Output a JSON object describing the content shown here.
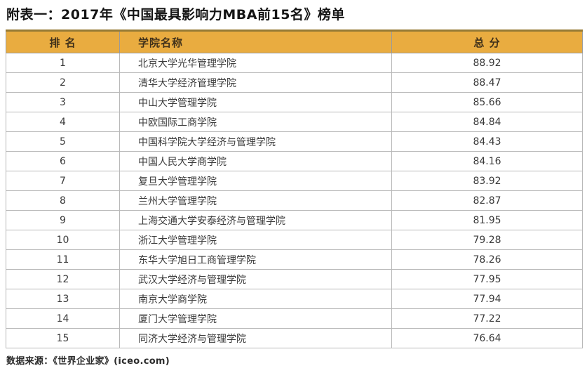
{
  "page": {
    "title": "附表一：2017年《中国最具影响力MBA前15名》榜单",
    "source_note": "数据来源：《世界企业家》(iceo.com)"
  },
  "colors": {
    "header_bg": "#e9ac40",
    "header_text": "#40311a",
    "header_top_rule": "#967a35",
    "grid_border": "#b8b8b8",
    "outer_border": "#7d7d7d",
    "body_text": "#3a3a3a"
  },
  "chart_data": {
    "type": "table",
    "title": "附表一：2017年《中国最具影响力MBA前15名》榜单",
    "columns": [
      "排 名",
      "学院名称",
      "总 分"
    ],
    "rows": [
      [
        1,
        "北京大学光华管理学院",
        88.92
      ],
      [
        2,
        "清华大学经济管理学院",
        88.47
      ],
      [
        3,
        "中山大学管理学院",
        85.66
      ],
      [
        4,
        "中欧国际工商学院",
        84.84
      ],
      [
        5,
        "中国科学院大学经济与管理学院",
        84.43
      ],
      [
        6,
        "中国人民大学商学院",
        84.16
      ],
      [
        7,
        "复旦大学管理学院",
        83.92
      ],
      [
        8,
        "兰州大学管理学院",
        82.87
      ],
      [
        9,
        "上海交通大学安泰经济与管理学院",
        81.95
      ],
      [
        10,
        "浙江大学管理学院",
        79.28
      ],
      [
        11,
        "东华大学旭日工商管理学院",
        78.26
      ],
      [
        12,
        "武汉大学经济与管理学院",
        77.95
      ],
      [
        13,
        "南京大学商学院",
        77.94
      ],
      [
        14,
        "厦门大学管理学院",
        77.22
      ],
      [
        15,
        "同济大学经济与管理学院",
        76.64
      ]
    ],
    "source": "数据来源：《世界企业家》(iceo.com)",
    "layout": {
      "header_style": "gold band",
      "grid": true,
      "rank_align": "center",
      "name_align": "left",
      "score_align": "center"
    }
  }
}
